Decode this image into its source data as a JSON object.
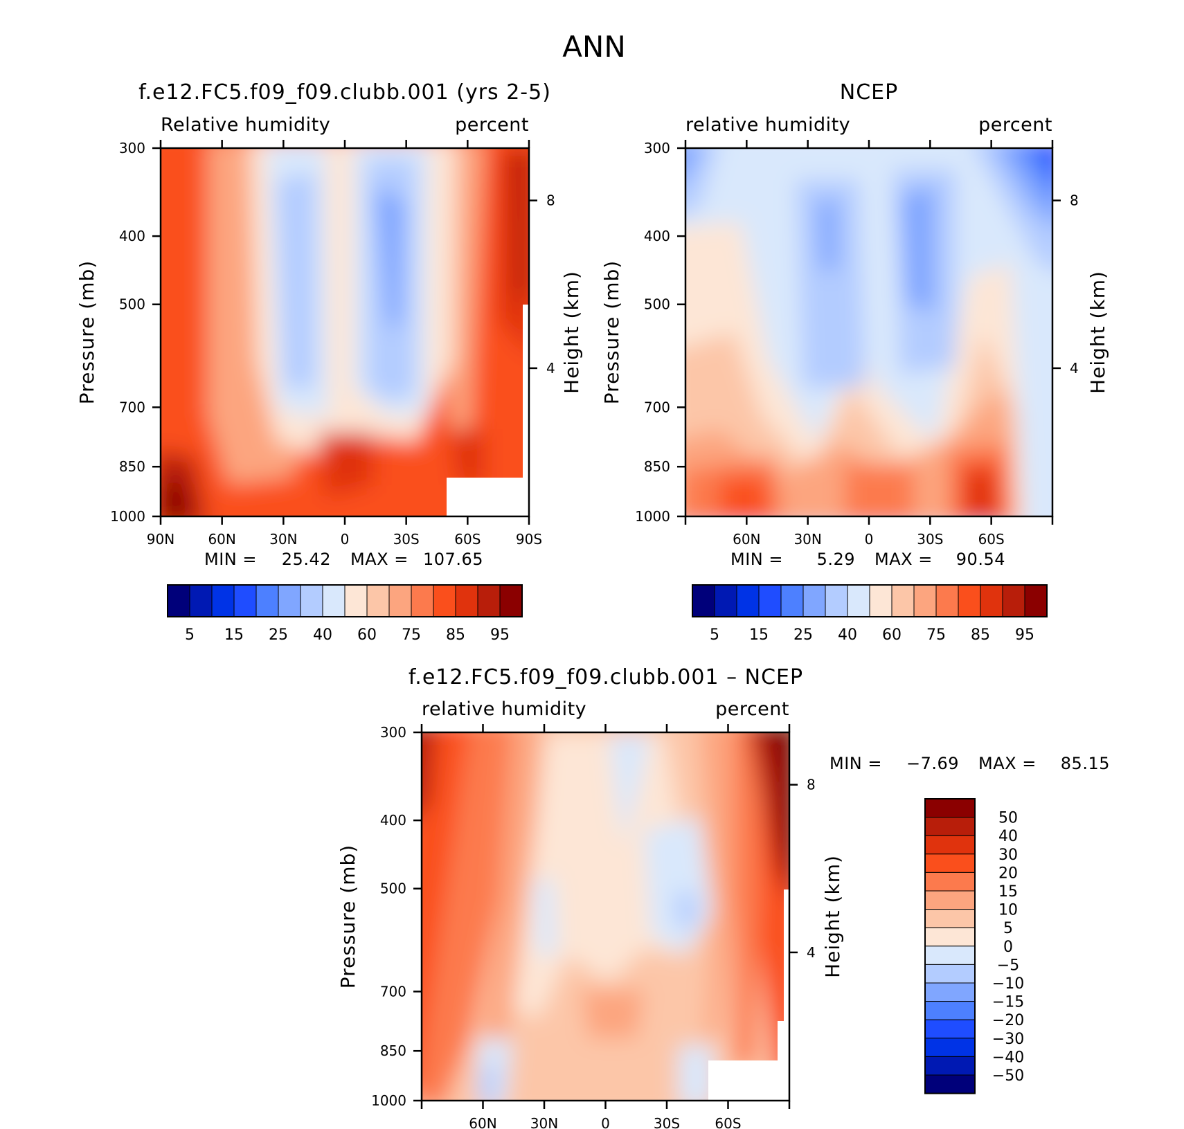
{
  "figure": {
    "title": "ANN"
  },
  "chart_data": [
    {
      "type": "heatmap",
      "title": "f.e12.FC5.f09_f09.clubb.001 (yrs 2-5)",
      "left_label": "Relative humidity",
      "right_label": "percent",
      "ylabel": "Pressure (mb)",
      "ylabel_right": "Height (km)",
      "pressure_ticks": [
        "300",
        "400",
        "500",
        "700",
        "850",
        "1000"
      ],
      "height_ticks": [
        "8",
        "4"
      ],
      "lat_ticks": [
        "90N",
        "60N",
        "30N",
        "0",
        "30S",
        "60S",
        "90S"
      ],
      "min_label": "MIN =",
      "min_value": "25.42",
      "max_label": "MAX =",
      "max_value": "107.65",
      "levels_shown": [
        "5",
        "15",
        "25",
        "40",
        "60",
        "75",
        "85",
        "95"
      ]
    },
    {
      "type": "heatmap",
      "title": "NCEP",
      "left_label": "relative humidity",
      "right_label": "percent",
      "ylabel": "Pressure (mb)",
      "ylabel_right": "Height (km)",
      "pressure_ticks": [
        "300",
        "400",
        "500",
        "700",
        "850",
        "1000"
      ],
      "height_ticks": [
        "8",
        "4"
      ],
      "lat_ticks": [
        "60N",
        "30N",
        "0",
        "30S",
        "60S"
      ],
      "min_label": "MIN =",
      "min_value": "5.29",
      "max_label": "MAX =",
      "max_value": "90.54",
      "levels_shown": [
        "5",
        "15",
        "25",
        "40",
        "60",
        "75",
        "85",
        "95"
      ]
    },
    {
      "type": "heatmap",
      "title": "f.e12.FC5.f09_f09.clubb.001 – NCEP",
      "left_label": "relative humidity",
      "right_label": "percent",
      "ylabel": "Pressure (mb)",
      "ylabel_right": "Height (km)",
      "pressure_ticks": [
        "300",
        "400",
        "500",
        "700",
        "850",
        "1000"
      ],
      "height_ticks": [
        "8",
        "4"
      ],
      "lat_ticks": [
        "60N",
        "30N",
        "0",
        "30S",
        "60S"
      ],
      "min_label": "MIN =",
      "min_value": "−7.69",
      "max_label": "MAX =",
      "max_value": "85.15",
      "levels_shown": [
        "50",
        "40",
        "30",
        "20",
        "15",
        "10",
        "5",
        "0",
        "−5",
        "−10",
        "−15",
        "−20",
        "−30",
        "−40",
        "−50"
      ]
    }
  ],
  "colors": {
    "scale": [
      "#00007a",
      "#0019b3",
      "#0033e6",
      "#1f4dff",
      "#4d80ff",
      "#80a6ff",
      "#b3ccff",
      "#d9e8fc",
      "#fde6d6",
      "#fcc6a8",
      "#fca57f",
      "#fc7a4d",
      "#fa4f1c",
      "#e0330d",
      "#b81e0a",
      "#8b0000"
    ]
  }
}
